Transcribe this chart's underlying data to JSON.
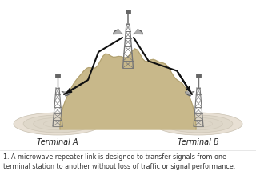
{
  "bg_color": "#ffffff",
  "diagram_bg": "#f5f5f0",
  "hill_color": "#c8b88a",
  "hill_edge": "#b0a070",
  "ellipse_color_outer": "#e0d8cc",
  "ellipse_color_inner": "#d0c8ba",
  "tower_color": "#777777",
  "dish_color": "#aaaaaa",
  "dish_edge": "#555555",
  "signal_color": "#111111",
  "text_color": "#222222",
  "caption_color": "#333333",
  "caption": "1. A microwave repeater link is designed to transfer signals from one\nterminal station to another without loss of traffic or signal performance.",
  "terminal_a": "Terminal A",
  "terminal_b": "Terminal B",
  "caption_fontsize": 5.8,
  "label_fontsize": 7.0,
  "figw": 3.2,
  "figh": 2.39,
  "dpi": 100
}
